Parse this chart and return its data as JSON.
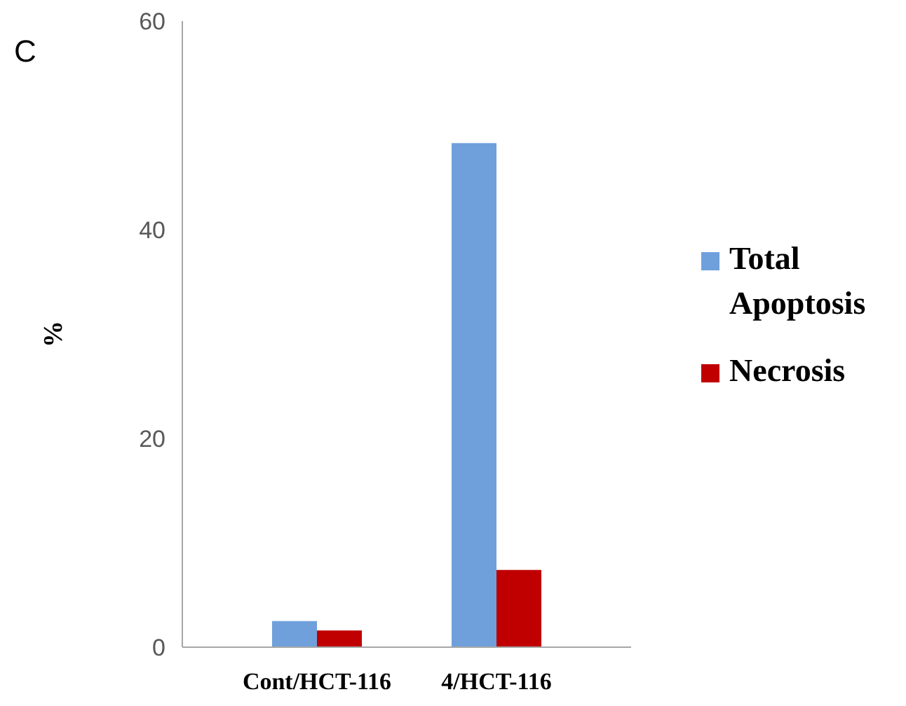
{
  "chart_data": {
    "type": "bar",
    "ylabel": "%",
    "annotations": [
      "C"
    ],
    "categories": [
      "Cont/HCT-116",
      "4/HCT-116"
    ],
    "series": [
      {
        "name": "Total Apoptosis",
        "color": "#6fa0dc",
        "values": [
          2.5,
          48.3
        ]
      },
      {
        "name": "Necrosis",
        "color": "#c00000",
        "values": [
          1.6,
          7.4
        ]
      }
    ],
    "ylim": [
      0,
      60
    ],
    "yticks": [
      0,
      20,
      40,
      60
    ],
    "grid": false,
    "legend": "right"
  }
}
